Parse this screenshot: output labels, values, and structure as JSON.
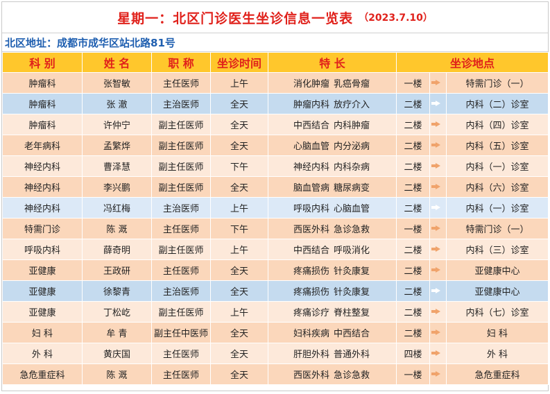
{
  "header": {
    "title": "星期一：北区门诊医生坐诊信息一览表",
    "date": "（2023.7.10）"
  },
  "address": "北区地址：成都市成华区站北路81号",
  "columns": {
    "dept": "科 别",
    "name": "姓 名",
    "title": "职 称",
    "time": "坐诊时间",
    "specialty": "特 长",
    "location": "坐诊地点"
  },
  "colors": {
    "title_red": "#e0211b",
    "address_blue": "#1f5fb0",
    "header_yellow": "#ffc72c",
    "row_orange": "#fbd7bb",
    "row_peach": "#fde9da",
    "row_blue": "#c5dbef",
    "row_light_blue": "#dce9f7"
  },
  "rows": [
    {
      "dept": "肿瘤科",
      "name": "张智敏",
      "title": "主任医师",
      "time": "上午",
      "spec1": "消化肿瘤",
      "spec2": "乳癌骨瘤",
      "floor": "一楼",
      "room": "特需门诊（一）",
      "color": "c-orange"
    },
    {
      "dept": "肿瘤科",
      "name": "张  澈",
      "title": "主治医师",
      "time": "全天",
      "spec1": "肿瘤内科",
      "spec2": "放疗介入",
      "floor": "二楼",
      "room": "内科（二）诊室",
      "color": "c-blue"
    },
    {
      "dept": "肿瘤科",
      "name": "许仲宁",
      "title": "副主任医师",
      "time": "全天",
      "spec1": "中西结合",
      "spec2": "内科肿瘤",
      "floor": "二楼",
      "room": "内科（四）诊室",
      "color": "c-peach"
    },
    {
      "dept": "老年病科",
      "name": "孟繁烨",
      "title": "副主任医师",
      "time": "全天",
      "spec1": "心脑血管",
      "spec2": "内分泌病",
      "floor": "二楼",
      "room": "内科（五）诊室",
      "color": "c-orange"
    },
    {
      "dept": "神经内科",
      "name": "曹泽慧",
      "title": "副主任医师",
      "time": "下午",
      "spec1": "神经内科",
      "spec2": "内科杂病",
      "floor": "二楼",
      "room": "内科（一）诊室",
      "color": "c-peach"
    },
    {
      "dept": "神经内科",
      "name": "李兴鹏",
      "title": "副主任医师",
      "time": "全天",
      "spec1": "脑血管病",
      "spec2": "糖尿病变",
      "floor": "二楼",
      "room": "内科（六）诊室",
      "color": "c-orange"
    },
    {
      "dept": "神经内科",
      "name": "冯红梅",
      "title": "主治医师",
      "time": "上午",
      "spec1": "呼吸内科",
      "spec2": "心脑血管",
      "floor": "二楼",
      "room": "内科（一）诊室",
      "color": "c-lblue"
    },
    {
      "dept": "特需门诊",
      "name": "陈  溉",
      "title": "主任医师",
      "time": "下午",
      "spec1": "西医外科",
      "spec2": "急诊急救",
      "floor": "一楼",
      "room": "特需门诊（一）",
      "color": "c-orange"
    },
    {
      "dept": "呼吸内科",
      "name": "薛奇明",
      "title": "副主任医师",
      "time": "上午",
      "spec1": "中西结合",
      "spec2": "呼吸消化",
      "floor": "二楼",
      "room": "内科（三）诊室",
      "color": "c-peach"
    },
    {
      "dept": "亚健康",
      "name": "王政研",
      "title": "主任医师",
      "time": "全天",
      "spec1": "疼痛损伤",
      "spec2": "针灸康复",
      "floor": "二楼",
      "room": "亚健康中心",
      "color": "c-orange"
    },
    {
      "dept": "亚健康",
      "name": "徐黎青",
      "title": "主治医师",
      "time": "全天",
      "spec1": "疼痛损伤",
      "spec2": "针灸康复",
      "floor": "二楼",
      "room": "亚健康中心",
      "color": "c-blue"
    },
    {
      "dept": "亚健康",
      "name": "丁松屹",
      "title": "副主任医师",
      "time": "上午",
      "spec1": "疼痛诊疗",
      "spec2": "脊柱整复",
      "floor": "二楼",
      "room": "内科（七）诊室",
      "color": "c-peach"
    },
    {
      "dept": "妇  科",
      "name": "牟  青",
      "title": "副主任中医师",
      "time": "全天",
      "spec1": "妇科疾病",
      "spec2": "中西结合",
      "floor": "二楼",
      "room": "妇  科",
      "color": "c-orange"
    },
    {
      "dept": "外  科",
      "name": "黄庆国",
      "title": "主任医师",
      "time": "全天",
      "spec1": "肝胆外科",
      "spec2": "普通外科",
      "floor": "四楼",
      "room": "外  科",
      "color": "c-peach"
    },
    {
      "dept": "急危重症科",
      "name": "陈  溉",
      "title": "主任医师",
      "time": "全天",
      "spec1": "西医外科",
      "spec2": "急诊急救",
      "floor": "一楼",
      "room": "急危重症科",
      "color": "c-orange"
    }
  ]
}
